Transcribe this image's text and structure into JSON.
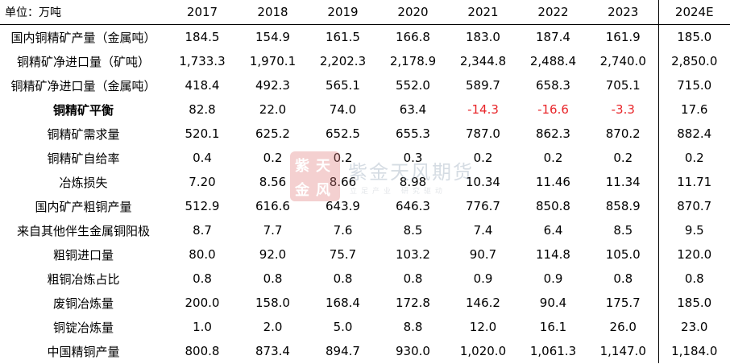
{
  "unit_label": "单位：万吨",
  "years": [
    "2017",
    "2018",
    "2019",
    "2020",
    "2021",
    "2022",
    "2023",
    "2024E"
  ],
  "rows": [
    {
      "label": "国内铜精矿产量（金属吨）",
      "values": [
        "184.5",
        "154.9",
        "161.5",
        "166.8",
        "183.0",
        "187.4",
        "161.9",
        "185.0"
      ]
    },
    {
      "label": "铜精矿净进口量（矿吨）",
      "values": [
        "1,733.3",
        "1,970.1",
        "2,202.3",
        "2,178.9",
        "2,344.8",
        "2,488.4",
        "2,740.0",
        "2,850.0"
      ]
    },
    {
      "label": "铜精矿净进口量（金属吨）",
      "values": [
        "418.4",
        "492.3",
        "565.1",
        "552.0",
        "589.7",
        "658.3",
        "705.1",
        "715.0"
      ]
    },
    {
      "label": "铜精矿平衡",
      "values": [
        "82.8",
        "22.0",
        "74.0",
        "63.4",
        "-14.3",
        "-16.6",
        "-3.3",
        "17.6"
      ]
    },
    {
      "label": "铜精矿需求量",
      "values": [
        "520.1",
        "625.2",
        "652.5",
        "655.3",
        "787.0",
        "862.3",
        "870.2",
        "882.4"
      ]
    },
    {
      "label": "铜精矿自给率",
      "values": [
        "0.4",
        "0.2",
        "0.2",
        "0.3",
        "0.2",
        "0.2",
        "0.2",
        "0.2"
      ]
    },
    {
      "label": "冶炼损失",
      "values": [
        "7.20",
        "8.56",
        "8.66",
        "8.98",
        "10.34",
        "11.46",
        "11.34",
        "11.71"
      ]
    },
    {
      "label": "国内矿产粗铜产量",
      "values": [
        "512.9",
        "616.6",
        "643.9",
        "646.3",
        "776.7",
        "850.8",
        "858.9",
        "870.7"
      ]
    },
    {
      "label": "来自其他伴生金属铜阳极",
      "values": [
        "8.7",
        "7.7",
        "7.6",
        "8.5",
        "7.4",
        "6.4",
        "8.5",
        "9.5"
      ]
    },
    {
      "label": "粗铜进口量",
      "values": [
        "80.0",
        "92.0",
        "75.7",
        "103.2",
        "90.7",
        "114.8",
        "105.0",
        "120.0"
      ]
    },
    {
      "label": "粗铜冶炼占比",
      "values": [
        "0.8",
        "0.8",
        "0.8",
        "0.8",
        "0.9",
        "0.9",
        "0.8",
        "0.8"
      ]
    },
    {
      "label": "废铜冶炼量",
      "values": [
        "200.0",
        "158.0",
        "168.4",
        "172.8",
        "146.2",
        "90.4",
        "175.7",
        "185.0"
      ]
    },
    {
      "label": "铜锭冶炼量",
      "values": [
        "1.0",
        "2.0",
        "5.0",
        "8.8",
        "12.0",
        "16.1",
        "26.0",
        "23.0"
      ]
    },
    {
      "label": "中国精铜产量",
      "values": [
        "800.8",
        "873.4",
        "894.7",
        "930.0",
        "1,020.0",
        "1,061.3",
        "1,147.0",
        "1,184.0"
      ]
    }
  ],
  "watermark": {
    "logo_text": "紫金天风",
    "name": "紫金天风期货",
    "slogan": "立足产业 研究驱动"
  },
  "colors": {
    "negative": "#e8262a",
    "text": "#000000"
  }
}
